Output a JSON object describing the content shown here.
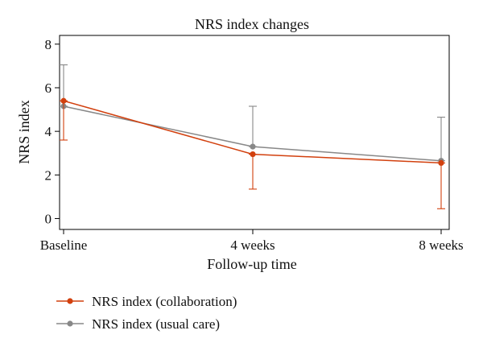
{
  "chart_data": {
    "type": "line",
    "title": "NRS index changes",
    "xlabel": "Follow-up time",
    "ylabel": "NRS index",
    "categories": [
      "Baseline",
      "4 weeks",
      "8 weeks"
    ],
    "ylim": [
      -0.5,
      8.4
    ],
    "yticks": [
      0,
      2,
      4,
      6,
      8
    ],
    "grid": false,
    "legend_position": "bottom-left",
    "series": [
      {
        "name": "NRS index (collaboration)",
        "color": "#d2400e",
        "values": [
          5.4,
          2.95,
          2.55
        ],
        "error_low": [
          3.6,
          1.35,
          0.45
        ],
        "error_high": [
          5.4,
          2.95,
          2.55
        ]
      },
      {
        "name": "NRS index (usual care)",
        "color": "#888888",
        "values": [
          5.15,
          3.3,
          2.65
        ],
        "error_low": [
          5.15,
          3.3,
          2.65
        ],
        "error_high": [
          7.05,
          5.15,
          4.65
        ]
      }
    ]
  }
}
